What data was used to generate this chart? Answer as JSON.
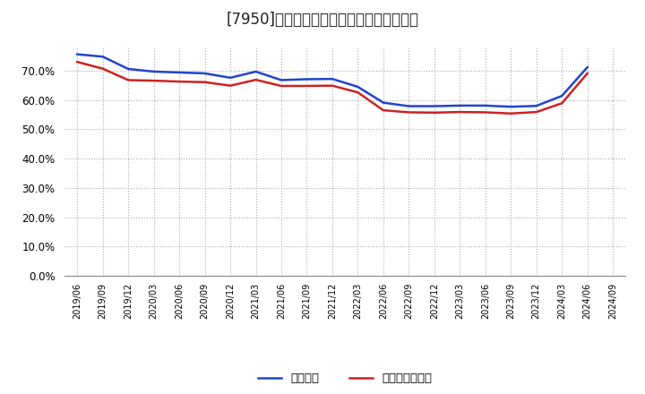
{
  "title": "[7950]　固定比率、固定長期適合率の推移",
  "ylim": [
    0.0,
    0.78
  ],
  "yticks": [
    0.0,
    0.1,
    0.2,
    0.3,
    0.4,
    0.5,
    0.6,
    0.7
  ],
  "background_color": "#ffffff",
  "grid_color": "#aaaaaa",
  "legend_labels": [
    "固定比率",
    "固定長期適合率"
  ],
  "line_colors": [
    "#2244cc",
    "#cc2222"
  ],
  "x_labels": [
    "2019/06",
    "2019/09",
    "2019/12",
    "2020/03",
    "2020/06",
    "2020/09",
    "2020/12",
    "2021/03",
    "2021/06",
    "2021/09",
    "2021/12",
    "2022/03",
    "2022/06",
    "2022/09",
    "2022/12",
    "2023/03",
    "2023/06",
    "2023/09",
    "2023/12",
    "2024/03",
    "2024/06",
    "2024/09"
  ],
  "series1": [
    0.756,
    0.748,
    0.706,
    0.697,
    0.694,
    0.691,
    0.676,
    0.697,
    0.668,
    0.671,
    0.672,
    0.645,
    0.591,
    0.579,
    0.579,
    0.581,
    0.581,
    0.577,
    0.58,
    0.614,
    0.712,
    null
  ],
  "series2": [
    0.73,
    0.707,
    0.668,
    0.666,
    0.663,
    0.661,
    0.649,
    0.669,
    0.648,
    0.648,
    0.649,
    0.626,
    0.565,
    0.558,
    0.557,
    0.559,
    0.558,
    0.554,
    0.559,
    0.589,
    0.691,
    null
  ]
}
